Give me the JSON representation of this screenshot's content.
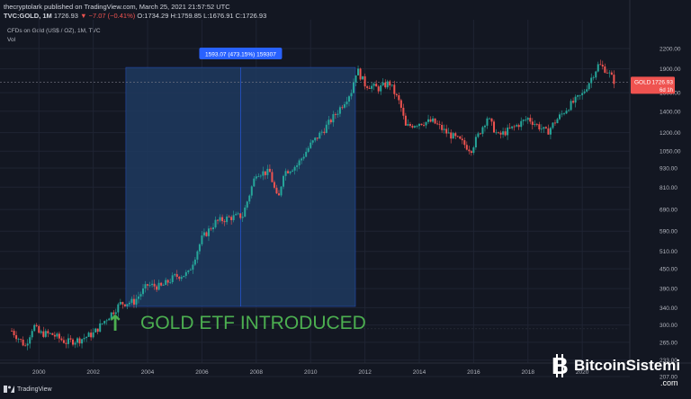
{
  "header": {
    "publisher_line": "thecryptolark published on TradingView.com, March 25, 2021 21:57:52 UTC",
    "publisher": "thecryptolark",
    "symbol": "TVC:GOLD, 1M",
    "last": "1726.93",
    "change": "▼ −7.07 (−0.41%)",
    "ohlc": "O:1734.29 H:1759.85 L:1676.91 C:1726.93"
  },
  "symbol_description": "CFDs on Gold (US$ / OZ), 1M, TVC",
  "volume_label": "Vol",
  "price_tag": {
    "label": "GOLD",
    "value": "1726.93",
    "countdown": "6d 1h",
    "color": "#ef5350"
  },
  "measure_label": "1593.07 (473.15%) 159307",
  "annotation": {
    "text": "GOLD ETF INTRODUCED",
    "arrow": "↑",
    "color": "#4caf50"
  },
  "footer": {
    "brand": "TradingView"
  },
  "watermark": {
    "brand": "BitcoinSistemi",
    "domain": ".com"
  },
  "colors": {
    "background": "#131722",
    "up": "#26a69a",
    "down": "#ef5350",
    "measure_fill": "#1e3a5f",
    "measure_label_bg": "#2962ff"
  },
  "chart_data": {
    "type": "candlestick",
    "scale": "log",
    "title": "CFDs on Gold (US$ / OZ), 1M, TVC",
    "x_ticks": [
      "2000",
      "2002",
      "2004",
      "2006",
      "2008",
      "2010",
      "2012",
      "2014",
      "2016",
      "2018",
      "2020"
    ],
    "y_ticks": [
      2200,
      1900,
      1600,
      1400,
      1200,
      1050,
      930,
      810,
      690,
      590,
      510,
      450,
      390,
      340,
      300,
      265,
      233,
      207
    ],
    "ylim": [
      200,
      2500
    ],
    "grid": true,
    "series_close": [
      {
        "x": 1999.0,
        "y": 288
      },
      {
        "x": 1999.5,
        "y": 258
      },
      {
        "x": 1999.8,
        "y": 300
      },
      {
        "x": 2000.0,
        "y": 283
      },
      {
        "x": 2000.5,
        "y": 280
      },
      {
        "x": 2001.0,
        "y": 265
      },
      {
        "x": 2001.5,
        "y": 270
      },
      {
        "x": 2002.0,
        "y": 282
      },
      {
        "x": 2002.5,
        "y": 315
      },
      {
        "x": 2003.0,
        "y": 350
      },
      {
        "x": 2003.5,
        "y": 355
      },
      {
        "x": 2004.0,
        "y": 400
      },
      {
        "x": 2004.5,
        "y": 395
      },
      {
        "x": 2005.0,
        "y": 425
      },
      {
        "x": 2005.5,
        "y": 435
      },
      {
        "x": 2006.0,
        "y": 560
      },
      {
        "x": 2006.5,
        "y": 630
      },
      {
        "x": 2007.0,
        "y": 650
      },
      {
        "x": 2007.5,
        "y": 660
      },
      {
        "x": 2008.0,
        "y": 900
      },
      {
        "x": 2008.5,
        "y": 900
      },
      {
        "x": 2008.8,
        "y": 730
      },
      {
        "x": 2009.0,
        "y": 900
      },
      {
        "x": 2009.5,
        "y": 950
      },
      {
        "x": 2010.0,
        "y": 1100
      },
      {
        "x": 2010.5,
        "y": 1230
      },
      {
        "x": 2011.0,
        "y": 1400
      },
      {
        "x": 2011.5,
        "y": 1620
      },
      {
        "x": 2011.7,
        "y": 1900
      },
      {
        "x": 2012.0,
        "y": 1700
      },
      {
        "x": 2012.5,
        "y": 1650
      },
      {
        "x": 2012.9,
        "y": 1720
      },
      {
        "x": 2013.3,
        "y": 1470
      },
      {
        "x": 2013.5,
        "y": 1250
      },
      {
        "x": 2014.0,
        "y": 1290
      },
      {
        "x": 2014.5,
        "y": 1300
      },
      {
        "x": 2015.0,
        "y": 1200
      },
      {
        "x": 2015.5,
        "y": 1130
      },
      {
        "x": 2015.9,
        "y": 1060
      },
      {
        "x": 2016.5,
        "y": 1340
      },
      {
        "x": 2016.9,
        "y": 1170
      },
      {
        "x": 2017.5,
        "y": 1250
      },
      {
        "x": 2018.0,
        "y": 1330
      },
      {
        "x": 2018.7,
        "y": 1200
      },
      {
        "x": 2019.0,
        "y": 1300
      },
      {
        "x": 2019.5,
        "y": 1450
      },
      {
        "x": 2020.0,
        "y": 1580
      },
      {
        "x": 2020.6,
        "y": 1960
      },
      {
        "x": 2020.9,
        "y": 1880
      },
      {
        "x": 2021.2,
        "y": 1727
      }
    ],
    "measure_range": {
      "x_start": 2003.2,
      "x_end": 2011.65,
      "y_low": 343,
      "y_high": 1920
    }
  }
}
